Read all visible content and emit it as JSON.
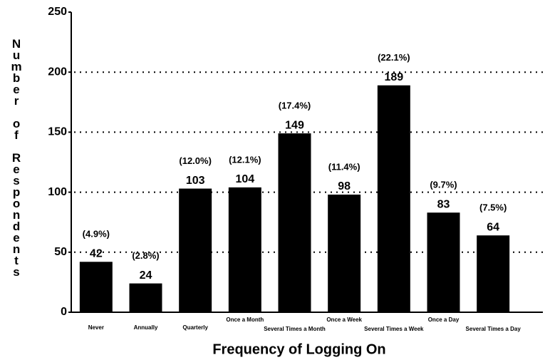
{
  "chart_data": {
    "type": "bar",
    "xlabel": "Frequency of Logging On",
    "ylabel": "Number of Respondents",
    "categories": [
      "Never",
      "Annually",
      "Quarterly",
      "Once a Month",
      "Several Times a Month",
      "Once a Week",
      "Several Times a Week",
      "Once a Day",
      "Several Times a Day"
    ],
    "values": [
      42,
      24,
      103,
      104,
      149,
      98,
      189,
      83,
      64
    ],
    "percent_labels": [
      "(4.9%)",
      "(2.8%)",
      "(12.0%)",
      "(12.1%)",
      "(17.4%)",
      "(11.4%)",
      "(22.1%)",
      "(9.7%)",
      "(7.5%)"
    ],
    "color": "#000000",
    "ylim": [
      0,
      250
    ],
    "yticks": [
      0,
      50,
      100,
      150,
      200,
      250
    ],
    "grid": true
  }
}
